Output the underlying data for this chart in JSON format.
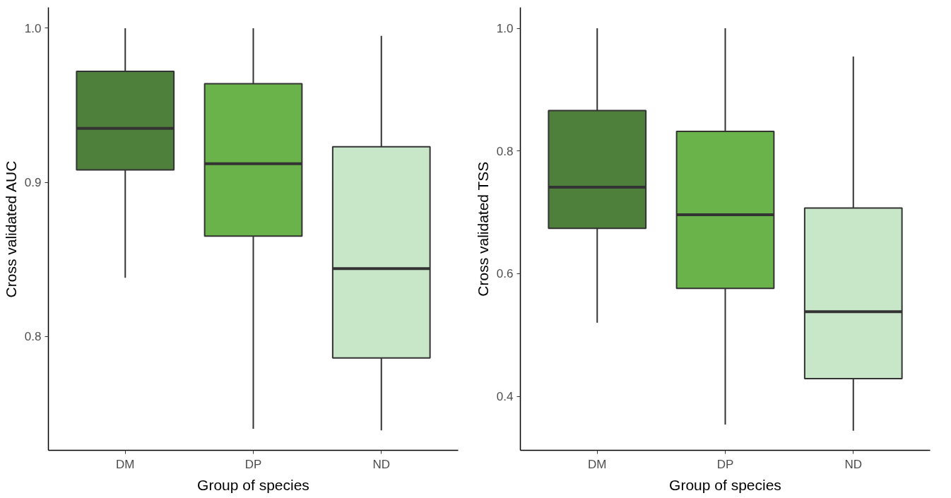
{
  "chart_data": [
    {
      "type": "box",
      "categories": [
        "DM",
        "DP",
        "ND"
      ],
      "xlabel": "Group of species",
      "ylabel": "Cross validated AUC",
      "colors": [
        "#4e7f3b",
        "#6ab34b",
        "#c8e6c8"
      ],
      "ylim": [
        0.726,
        1.0135
      ],
      "yticks": [
        0.8,
        0.9,
        {
          "value": 1,
          "label": "1.0"
        }
      ],
      "grid": false,
      "boxes": [
        {
          "low": 0.838,
          "q1": 0.908,
          "median": 0.935,
          "q3": 0.972,
          "high": 1.0
        },
        {
          "low": 0.74,
          "q1": 0.865,
          "median": 0.912,
          "q3": 0.964,
          "high": 1.0
        },
        {
          "low": 0.739,
          "q1": 0.786,
          "median": 0.844,
          "q3": 0.923,
          "high": 0.995
        }
      ]
    },
    {
      "type": "box",
      "categories": [
        "DM",
        "DP",
        "ND"
      ],
      "xlabel": "Group of species",
      "ylabel": "Cross validated TSS",
      "colors": [
        "#4e7f3b",
        "#6ab34b",
        "#c8e6c8"
      ],
      "ylim": [
        0.312,
        1.034
      ],
      "yticks": [
        0.4,
        0.6,
        0.8,
        {
          "value": 1,
          "label": "1.0"
        }
      ],
      "grid": false,
      "boxes": [
        {
          "low": 0.52,
          "q1": 0.674,
          "median": 0.741,
          "q3": 0.866,
          "high": 1.0
        },
        {
          "low": 0.354,
          "q1": 0.576,
          "median": 0.696,
          "q3": 0.832,
          "high": 1.0
        },
        {
          "low": 0.344,
          "q1": 0.429,
          "median": 0.538,
          "q3": 0.707,
          "high": 0.954
        }
      ]
    }
  ]
}
